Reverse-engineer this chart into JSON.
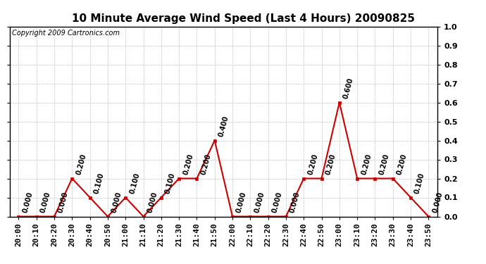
{
  "title": "10 Minute Average Wind Speed (Last 4 Hours) 20090825",
  "copyright": "Copyright 2009 Cartronics.com",
  "x_labels": [
    "20:00",
    "20:10",
    "20:20",
    "20:30",
    "20:40",
    "20:50",
    "21:00",
    "21:10",
    "21:20",
    "21:30",
    "21:40",
    "21:50",
    "22:00",
    "22:10",
    "22:20",
    "22:30",
    "22:40",
    "22:50",
    "23:00",
    "23:10",
    "23:20",
    "23:30",
    "23:40",
    "23:50"
  ],
  "y_values": [
    0.0,
    0.0,
    0.0,
    0.2,
    0.1,
    0.0,
    0.1,
    0.0,
    0.1,
    0.2,
    0.2,
    0.4,
    0.0,
    0.0,
    0.0,
    0.0,
    0.2,
    0.2,
    0.6,
    0.2,
    0.2,
    0.2,
    0.1,
    0.0
  ],
  "line_color": "#cc0000",
  "marker_color": "#cc0000",
  "bg_color": "#ffffff",
  "plot_bg_color": "#ffffff",
  "grid_color": "#bbbbbb",
  "ylim": [
    0.0,
    1.0
  ],
  "yticks": [
    0.0,
    0.1,
    0.2,
    0.3,
    0.4,
    0.5,
    0.6,
    0.7,
    0.8,
    0.9,
    1.0
  ],
  "title_fontsize": 11,
  "copyright_fontsize": 7,
  "tick_fontsize": 8,
  "annotation_fontsize": 7
}
